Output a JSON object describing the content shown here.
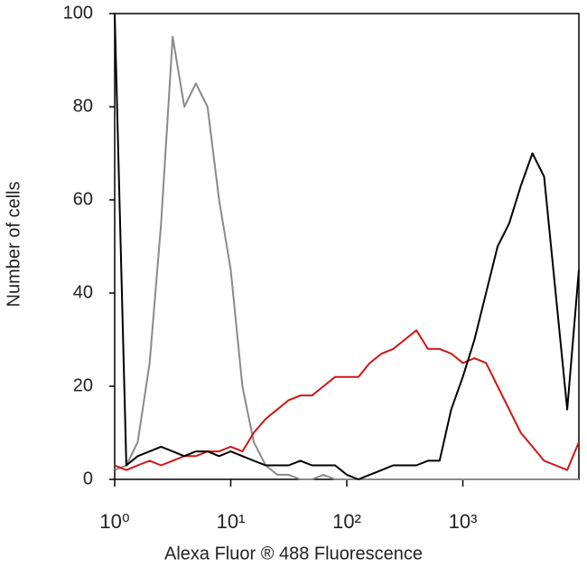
{
  "chart_data": {
    "type": "line",
    "x_label": "Alexa Fluor ® 488 Fluorescence",
    "y_label": "Number of cells",
    "log_x": true,
    "xlim": [
      1,
      10000
    ],
    "xticks": [
      {
        "value": 1,
        "label": "10⁰"
      },
      {
        "value": 10,
        "label": "10¹"
      },
      {
        "value": 100,
        "label": "10²"
      },
      {
        "value": 1000,
        "label": "10³"
      }
    ],
    "ylim": [
      0,
      100
    ],
    "yticks": [
      0,
      20,
      40,
      60,
      80,
      100
    ],
    "x": [
      1,
      1.26,
      1.58,
      2,
      2.51,
      3.16,
      3.98,
      5.01,
      6.31,
      7.94,
      10,
      12.6,
      15.8,
      20,
      25.1,
      31.6,
      39.8,
      50.1,
      63.1,
      79.4,
      100,
      126,
      158,
      200,
      251,
      316,
      398,
      501,
      631,
      794,
      1000,
      1259,
      1585,
      1995,
      2512,
      3162,
      3981,
      5012,
      6310,
      7943,
      10000
    ],
    "series": [
      {
        "color": "#8a8a8a",
        "values": [
          2,
          3,
          8,
          25,
          55,
          95,
          80,
          85,
          80,
          60,
          45,
          20,
          8,
          3,
          1,
          1,
          0,
          0,
          1,
          0,
          0,
          0,
          0,
          0,
          0,
          0,
          0,
          0,
          0,
          0,
          0,
          0,
          0,
          0,
          0,
          0,
          0,
          0,
          0,
          0,
          0
        ]
      },
      {
        "color": "#d01515",
        "values": [
          3,
          2,
          3,
          4,
          3,
          4,
          5,
          5,
          6,
          6,
          7,
          6,
          10,
          13,
          15,
          17,
          18,
          18,
          20,
          22,
          22,
          22,
          25,
          27,
          28,
          30,
          32,
          28,
          28,
          27,
          25,
          26,
          25,
          20,
          15,
          10,
          7,
          4,
          3,
          2,
          8
        ]
      },
      {
        "color": "#000000",
        "values": [
          100,
          3,
          5,
          6,
          7,
          6,
          5,
          6,
          6,
          5,
          6,
          5,
          4,
          3,
          3,
          3,
          4,
          3,
          3,
          3,
          1,
          0,
          1,
          2,
          3,
          3,
          3,
          4,
          4,
          15,
          22,
          30,
          40,
          50,
          55,
          63,
          70,
          65,
          40,
          15,
          45
        ]
      }
    ]
  }
}
